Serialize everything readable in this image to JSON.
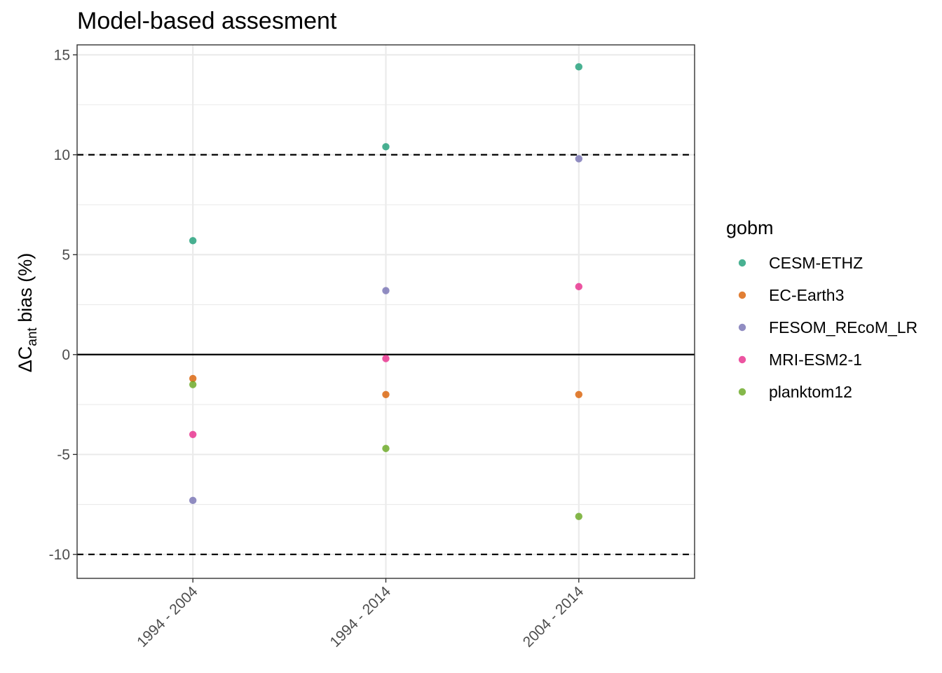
{
  "chart_data": {
    "type": "scatter",
    "title": "Model-based assesment",
    "xlabel": "",
    "ylabel": {
      "prefix": "ΔC",
      "subscript": "ant",
      "suffix": " bias (%)"
    },
    "categories": [
      "1994 - 2004",
      "1994 - 2014",
      "2004 - 2014"
    ],
    "ylim": [
      -11.2,
      15.5
    ],
    "yticks": [
      15,
      10,
      5,
      0,
      -5,
      -10
    ],
    "ytick_labels": [
      "15",
      "10",
      "5",
      "0",
      "-5",
      "-10"
    ],
    "grid": true,
    "reference_lines": [
      {
        "y": 0,
        "style": "solid"
      },
      {
        "y": 10,
        "style": "dashed"
      },
      {
        "y": -10,
        "style": "dashed"
      }
    ],
    "legend": {
      "title": "gobm",
      "position": "right"
    },
    "series": [
      {
        "name": "CESM-ETHZ",
        "color": "#1b9e77",
        "values": [
          5.7,
          10.4,
          14.4
        ]
      },
      {
        "name": "EC-Earth3",
        "color": "#d95f02",
        "values": [
          -1.2,
          -2.0,
          -2.0
        ]
      },
      {
        "name": "FESOM_REcoM_LR",
        "color": "#7570b3",
        "values": [
          -7.3,
          3.2,
          9.8
        ]
      },
      {
        "name": "MRI-ESM2-1",
        "color": "#e7298a",
        "values": [
          -4.0,
          -0.2,
          3.4
        ]
      },
      {
        "name": "planktom12",
        "color": "#66a61e",
        "values": [
          -1.5,
          -4.7,
          -8.1
        ]
      }
    ]
  }
}
